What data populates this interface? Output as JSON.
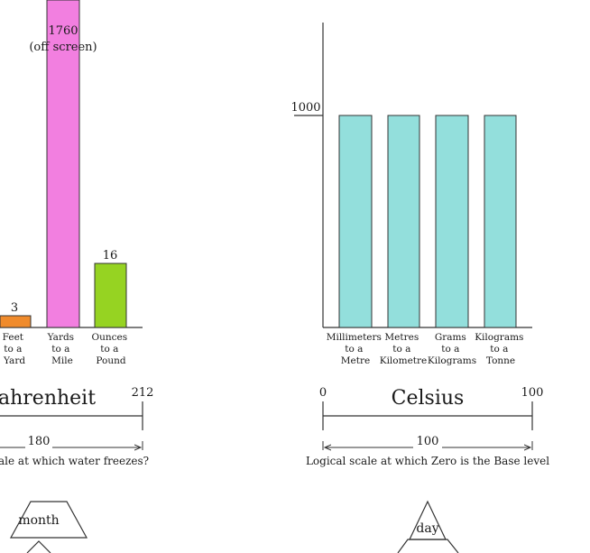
{
  "left_chart": {
    "bars": [
      {
        "value": 3,
        "value_label": "3",
        "color": "#f08b2c",
        "label_lines": [
          "Feet",
          "to a",
          "Yard"
        ]
      },
      {
        "value": 1760,
        "value_label": "1760",
        "value_note": "(off screen)",
        "color": "#f27fe0",
        "label_lines": [
          "Yards",
          "to a",
          "Mile"
        ]
      },
      {
        "value": 16,
        "value_label": "16",
        "color": "#96d322",
        "label_lines": [
          "Ounces",
          "to a",
          "Pound"
        ]
      }
    ]
  },
  "right_chart": {
    "tick_label": "1000",
    "bar_color": "#93dfdc",
    "bars": [
      {
        "value": 1000,
        "label_lines": [
          "Millimeters",
          "to a",
          "Metre"
        ]
      },
      {
        "value": 1000,
        "label_lines": [
          "Metres",
          "to a",
          "Kilometre"
        ]
      },
      {
        "value": 1000,
        "label_lines": [
          "Grams",
          "to a",
          "Kilograms"
        ]
      },
      {
        "value": 1000,
        "label_lines": [
          "Kilograms",
          "to a",
          "Tonne"
        ]
      }
    ]
  },
  "fahrenheit": {
    "title": "ahrenheit",
    "end_label": "212",
    "span_label": "180",
    "caption": "ale at which water freezes?"
  },
  "celsius": {
    "title": "Celsius",
    "start_label": "0",
    "end_label": "100",
    "span_label": "100",
    "caption": "Logical scale at which Zero is the Base level"
  },
  "shapes": {
    "left_label": "month",
    "right_label": "day"
  }
}
